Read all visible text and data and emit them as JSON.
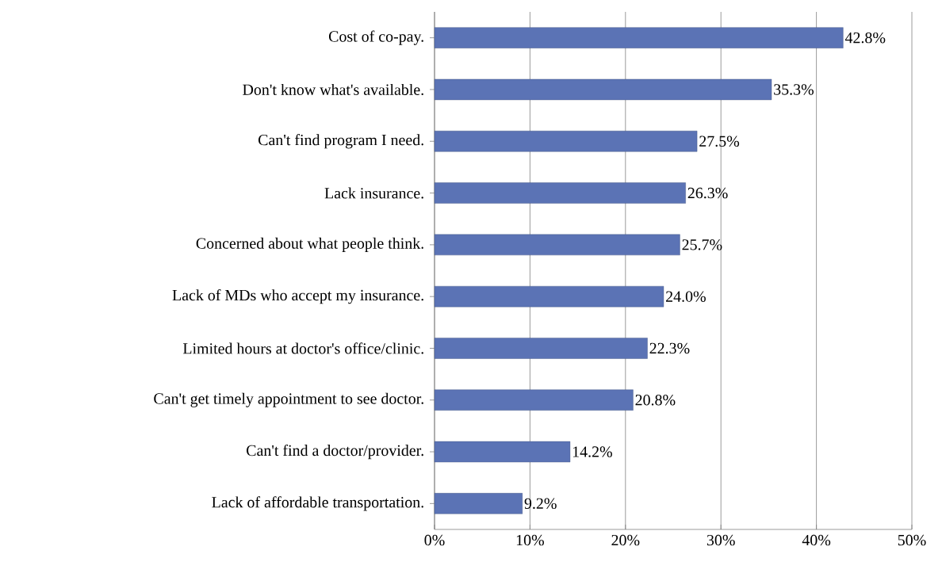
{
  "chart_data": {
    "type": "bar",
    "orientation": "horizontal",
    "categories": [
      "Cost of co-pay.",
      "Don't know what's available.",
      "Can't find program I need.",
      "Lack insurance.",
      "Concerned about what people think.",
      "Lack of MDs who accept my insurance.",
      "Limited hours at doctor's office/clinic.",
      "Can't get timely appointment to see doctor.",
      "Can't find a doctor/provider.",
      "Lack of affordable transportation."
    ],
    "values": [
      42.8,
      35.3,
      27.5,
      26.3,
      25.7,
      24.0,
      22.3,
      20.8,
      14.2,
      9.2
    ],
    "value_labels": [
      "42.8%",
      "35.3%",
      "27.5%",
      "26.3%",
      "25.7%",
      "24.0%",
      "22.3%",
      "20.8%",
      "14.2%",
      "9.2%"
    ],
    "color": "#5b73b5",
    "xlim": [
      0,
      50
    ],
    "xticks": [
      {
        "value": 0,
        "label": "0%"
      },
      {
        "value": 10,
        "label": "10%"
      },
      {
        "value": 20,
        "label": "20%"
      },
      {
        "value": 30,
        "label": "30%"
      },
      {
        "value": 40,
        "label": "40%"
      },
      {
        "value": 50,
        "label": "50%"
      }
    ],
    "grid": "x"
  }
}
